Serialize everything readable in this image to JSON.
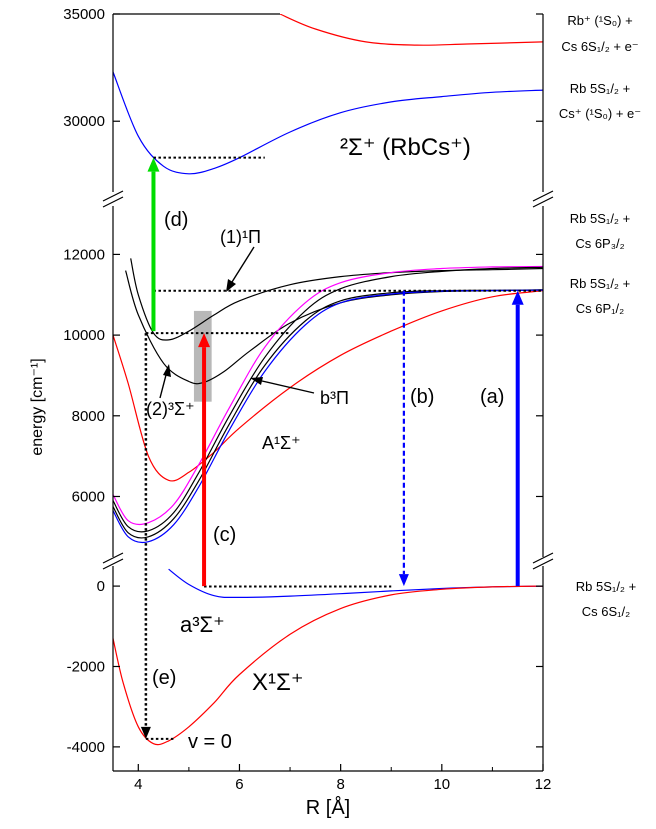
{
  "chart_data": {
    "type": "line",
    "xlabel": "R [Å]",
    "ylabel": "energy [cm⁻¹]",
    "xlim": [
      3.5,
      12
    ],
    "x_ticks": [
      "4",
      "6",
      "8",
      "10",
      "12"
    ],
    "panels": {
      "ion": {
        "ylim": [
          26700,
          35000
        ],
        "y_ticks": [
          "35000",
          "30000"
        ]
      },
      "excited": {
        "ylim": [
          4500,
          13200
        ],
        "y_ticks": [
          "12000",
          "10000",
          "8000",
          "6000"
        ]
      },
      "ground": {
        "ylim": [
          -4600,
          500
        ],
        "y_ticks": [
          "0",
          "-2000",
          "-4000"
        ]
      }
    },
    "series": [
      {
        "color": "#ff0000",
        "panel": "ion",
        "x": [
          6.8,
          7.5,
          8.5,
          9.5,
          10.5,
          12
        ],
        "y": [
          35000,
          34300,
          33700,
          33550,
          33600,
          33700
        ]
      },
      {
        "color": "#0000ff",
        "panel": "ion",
        "x": [
          3.5,
          4.0,
          4.5,
          5.0,
          5.5,
          6.0,
          7.0,
          8.0,
          9.0,
          10.0,
          11.0,
          12.0
        ],
        "y": [
          32300,
          29300,
          27900,
          27550,
          27800,
          28300,
          29500,
          30400,
          30900,
          31150,
          31350,
          31450
        ]
      },
      {
        "color": "#ff0000",
        "panel": "excited",
        "x": [
          3.5,
          3.8,
          4.2,
          4.6,
          5.0,
          5.5,
          6.0,
          7.0,
          8.0,
          9.0,
          10.0,
          11.0,
          12.0
        ],
        "y": [
          10000,
          8800,
          7000,
          6400,
          6600,
          7100,
          7700,
          8700,
          9500,
          10100,
          10600,
          10950,
          11100
        ]
      },
      {
        "color": "#000000",
        "panel": "excited",
        "x": [
          3.85,
          4.0,
          4.3,
          4.6,
          5.0,
          5.5,
          6.0,
          7.0,
          8.0,
          9.0,
          10.0,
          11.0,
          12.0
        ],
        "y": [
          11900,
          11000,
          10050,
          9880,
          10100,
          10500,
          10850,
          11250,
          11450,
          11550,
          11600,
          11620,
          11650
        ]
      },
      {
        "color": "#000000",
        "panel": "excited",
        "x": [
          3.75,
          4.0,
          4.5,
          5.0,
          5.3,
          5.7,
          6.2,
          7.0,
          8.0,
          9.0,
          10.0,
          11.0,
          12.0
        ],
        "y": [
          11600,
          10500,
          9300,
          8850,
          8830,
          9100,
          9600,
          10300,
          10800,
          11000,
          11080,
          11100,
          11120
        ]
      },
      {
        "color": "#ff00ff",
        "panel": "excited",
        "x": [
          3.5,
          3.8,
          4.2,
          4.7,
          5.2,
          5.8,
          6.5,
          7.3,
          8.0,
          9.0,
          10.0,
          11.0,
          12.0
        ],
        "y": [
          6050,
          5400,
          5350,
          5800,
          6800,
          8200,
          9700,
          10800,
          11300,
          11550,
          11650,
          11690,
          11700
        ]
      },
      {
        "color": "#000000",
        "panel": "excited",
        "x": [
          3.5,
          3.8,
          4.2,
          4.7,
          5.2,
          5.8,
          6.5,
          7.3,
          8.0,
          9.0,
          10.0,
          11.0,
          12.0
        ],
        "y": [
          5900,
          5250,
          5150,
          5600,
          6600,
          8000,
          9450,
          10600,
          11150,
          11450,
          11580,
          11650,
          11680
        ]
      },
      {
        "color": "#000000",
        "panel": "excited",
        "x": [
          3.5,
          3.8,
          4.2,
          4.7,
          5.2,
          5.8,
          6.5,
          7.3,
          8.0,
          9.0,
          10.0,
          11.0,
          12.0
        ],
        "y": [
          5750,
          5100,
          5000,
          5450,
          6400,
          7800,
          9250,
          10350,
          10850,
          11050,
          11100,
          11110,
          11120
        ]
      },
      {
        "color": "#0000ff",
        "panel": "excited",
        "x": [
          3.5,
          3.8,
          4.2,
          4.7,
          5.2,
          5.8,
          6.5,
          7.3,
          8.0,
          9.0,
          10.0,
          11.0,
          12.0
        ],
        "y": [
          5650,
          5000,
          4880,
          5300,
          6250,
          7650,
          9100,
          10250,
          10800,
          11020,
          11090,
          11105,
          11115
        ]
      },
      {
        "color": "#0000ff",
        "panel": "ground",
        "x": [
          4.6,
          5.0,
          5.5,
          6.0,
          7.0,
          8.0,
          9.0,
          10.0,
          11.0,
          12.0
        ],
        "y": [
          420,
          40,
          -240,
          -280,
          -250,
          -190,
          -120,
          -60,
          -20,
          0
        ]
      },
      {
        "color": "#ff0000",
        "panel": "ground",
        "x": [
          3.5,
          3.7,
          4.0,
          4.3,
          4.6,
          5.0,
          5.5,
          6.0,
          7.0,
          8.0,
          9.0,
          10.0,
          11.0,
          12.0
        ],
        "y": [
          -1300,
          -2400,
          -3500,
          -3920,
          -3850,
          -3500,
          -2900,
          -2200,
          -1200,
          -560,
          -220,
          -80,
          -20,
          0
        ]
      }
    ],
    "dotted_lines": [
      {
        "panel": "ion",
        "x": [
          4.3,
          6.5
        ],
        "y": [
          28300,
          28300
        ]
      },
      {
        "panel": "excited",
        "x": [
          4.3,
          12
        ],
        "y": [
          11100,
          11100
        ]
      },
      {
        "panel": "excited",
        "x": [
          4.15,
          7.0
        ],
        "y": [
          10050,
          10050
        ]
      },
      {
        "panel": "ground",
        "x": [
          5.3,
          9.0
        ],
        "y": [
          -10,
          -10
        ]
      },
      {
        "panel": "ground",
        "x": [
          4.15,
          4.7
        ],
        "y": [
          -3800,
          -3800
        ]
      }
    ],
    "arrows": [
      {
        "label": "(a)",
        "color": "#0000ff",
        "style": "solid",
        "x": 11.5,
        "from": [
          "ground",
          0
        ],
        "to": [
          "excited",
          11100
        ]
      },
      {
        "label": "(b)",
        "color": "#0000ff",
        "style": "dashed",
        "x": 9.25,
        "from": [
          "excited",
          11100
        ],
        "to": [
          "ground",
          0
        ]
      },
      {
        "label": "(c)",
        "color": "#ff0000",
        "style": "solid",
        "x": 5.3,
        "from": [
          "ground",
          0
        ],
        "to": [
          "excited",
          10050
        ]
      },
      {
        "label": "(d)",
        "color": "#00dd00",
        "style": "solid",
        "x": 4.3,
        "from": [
          "excited",
          10100
        ],
        "to": [
          "ion",
          28300
        ]
      },
      {
        "label": "(e)",
        "color": "#000000",
        "style": "dotted",
        "x": 4.15,
        "from": [
          "excited",
          10050
        ],
        "to": [
          "ground",
          -3800
        ]
      }
    ],
    "shaded_box": {
      "color": "#b8b8b8",
      "panel": "excited",
      "x": [
        5.1,
        5.45
      ],
      "y": [
        8350,
        10600
      ]
    },
    "annotations": {
      "pi1": "(1)¹Π",
      "sigma3": "(2)³Σ⁺",
      "b3pi": "b³Π",
      "a1sigma": "A¹Σ⁺",
      "a3sigma": "a³Σ⁺",
      "x1sigma": "X¹Σ⁺",
      "v0": "v = 0",
      "ion_state": "²Σ⁺ (RbCs⁺)"
    },
    "asymptotes": [
      {
        "line1": "Rb⁺ (¹S₀) +",
        "line2": "Cs 6S₁/₂ + e⁻"
      },
      {
        "line1": "Rb 5S₁/₂ +",
        "line2": "Cs⁺ (¹S₀) + e⁻"
      },
      {
        "line1": "Rb 5S₁/₂ +",
        "line2": "Cs 6P₃/₂"
      },
      {
        "line1": "Rb 5S₁/₂ +",
        "line2": "Cs 6P₁/₂"
      },
      {
        "line1": "Rb 5S₁/₂ +",
        "line2": "Cs 6S₁/₂"
      }
    ]
  }
}
